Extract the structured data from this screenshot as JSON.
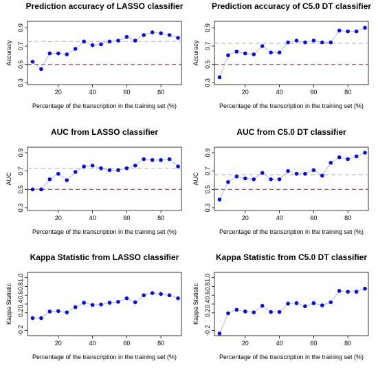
{
  "chart_data": [
    {
      "type": "line",
      "title": "Prediction accuracy of LASSO classifier",
      "xlabel": "Percentage of the transcription in the training set (%)",
      "ylabel": "Accuracy",
      "xlim": [
        2,
        92
      ],
      "ylim": [
        0.28,
        0.97
      ],
      "xticks": [
        20,
        40,
        60,
        80
      ],
      "yticks": [
        0.3,
        0.5,
        0.7,
        0.9
      ],
      "ref_lines": [
        {
          "y": 0.75,
          "style": "dashed",
          "color": "#bdbdbd"
        },
        {
          "y": 0.5,
          "style": "dashed",
          "color": "#e8281e"
        }
      ],
      "series": [
        {
          "x": [
            5,
            10,
            15,
            20,
            25,
            30,
            35,
            40,
            45,
            50,
            55,
            60,
            65,
            70,
            75,
            80,
            85,
            90
          ],
          "y": [
            0.53,
            0.45,
            0.62,
            0.62,
            0.61,
            0.67,
            0.75,
            0.71,
            0.72,
            0.75,
            0.76,
            0.8,
            0.76,
            0.82,
            0.85,
            0.84,
            0.82,
            0.79
          ]
        }
      ]
    },
    {
      "type": "line",
      "title": "Prediction accuracy of C5.0 DT classifier",
      "xlabel": "Percentage of the transcription in the training set (%)",
      "ylabel": "Accuracy",
      "xlim": [
        2,
        92
      ],
      "ylim": [
        0.28,
        0.97
      ],
      "xticks": [
        20,
        40,
        60,
        80
      ],
      "yticks": [
        0.3,
        0.5,
        0.7,
        0.9
      ],
      "ref_lines": [
        {
          "y": 0.73,
          "style": "dashed",
          "color": "#bdbdbd"
        },
        {
          "y": 0.5,
          "style": "dashed",
          "color": "#e8281e"
        }
      ],
      "series": [
        {
          "x": [
            5,
            10,
            15,
            20,
            25,
            30,
            35,
            40,
            45,
            50,
            55,
            60,
            65,
            70,
            75,
            80,
            85,
            90
          ],
          "y": [
            0.36,
            0.6,
            0.64,
            0.62,
            0.61,
            0.7,
            0.63,
            0.63,
            0.74,
            0.76,
            0.74,
            0.76,
            0.74,
            0.74,
            0.87,
            0.86,
            0.86,
            0.9
          ]
        }
      ]
    },
    {
      "type": "line",
      "title": "AUC from LASSO classifier",
      "xlabel": "Percentage of the transcription in the training set (%)",
      "ylabel": "AUC",
      "xlim": [
        2,
        92
      ],
      "ylim": [
        0.27,
        0.96
      ],
      "xticks": [
        20,
        40,
        60,
        80
      ],
      "yticks": [
        0.3,
        0.5,
        0.7,
        0.9
      ],
      "ref_lines": [
        {
          "y": 0.73,
          "style": "dashed",
          "color": "#bdbdbd"
        },
        {
          "y": 0.5,
          "style": "dashed",
          "color": "#e8281e"
        }
      ],
      "series": [
        {
          "x": [
            5,
            10,
            15,
            20,
            25,
            30,
            35,
            40,
            45,
            50,
            55,
            60,
            65,
            70,
            75,
            80,
            85,
            90
          ],
          "y": [
            0.5,
            0.5,
            0.61,
            0.67,
            0.6,
            0.69,
            0.75,
            0.76,
            0.73,
            0.71,
            0.71,
            0.73,
            0.76,
            0.83,
            0.82,
            0.82,
            0.83,
            0.75
          ]
        }
      ]
    },
    {
      "type": "line",
      "title": "AUC from C5.0 DT classifier",
      "xlabel": "Percentage of the transcription in the training set (%)",
      "ylabel": "AUC",
      "xlim": [
        2,
        92
      ],
      "ylim": [
        0.27,
        0.96
      ],
      "xticks": [
        20,
        40,
        60,
        80
      ],
      "yticks": [
        0.3,
        0.5,
        0.7,
        0.9
      ],
      "ref_lines": [
        {
          "y": 0.66,
          "style": "dashed",
          "color": "#bdbdbd"
        },
        {
          "y": 0.5,
          "style": "dashed",
          "color": "#e8281e"
        }
      ],
      "series": [
        {
          "x": [
            5,
            10,
            15,
            20,
            25,
            30,
            35,
            40,
            45,
            50,
            55,
            60,
            65,
            70,
            75,
            80,
            85,
            90
          ],
          "y": [
            0.39,
            0.58,
            0.64,
            0.62,
            0.61,
            0.68,
            0.61,
            0.61,
            0.7,
            0.67,
            0.67,
            0.71,
            0.65,
            0.79,
            0.85,
            0.83,
            0.86,
            0.9
          ]
        }
      ]
    },
    {
      "type": "line",
      "title": "Kappa Statistic from LASSO classifier",
      "xlabel": "Percentage of the transcription in the training set (%)",
      "ylabel": "Kappa Statistic",
      "xlim": [
        2,
        92
      ],
      "ylim": [
        -0.32,
        1.12
      ],
      "xticks": [
        20,
        40,
        60,
        80
      ],
      "yticks": [
        -0.2,
        0.2,
        0.4,
        0.6,
        0.8,
        1.0
      ],
      "ytick_labels": [
        "-0.2",
        "0.2",
        "0.4",
        "0.6",
        "0.8",
        "1.0"
      ],
      "series": [
        {
          "x": [
            5,
            10,
            15,
            20,
            25,
            30,
            35,
            40,
            45,
            50,
            55,
            60,
            65,
            70,
            75,
            80,
            85,
            90
          ],
          "y": [
            0.08,
            0.08,
            0.23,
            0.24,
            0.21,
            0.33,
            0.43,
            0.38,
            0.39,
            0.43,
            0.45,
            0.53,
            0.44,
            0.6,
            0.65,
            0.63,
            0.6,
            0.53
          ]
        }
      ]
    },
    {
      "type": "line",
      "title": "Kappa Statistic from C5.0 DT classifier",
      "xlabel": "Percentage of the transcription in the training set (%)",
      "ylabel": "Kappa Statistic",
      "xlim": [
        2,
        92
      ],
      "ylim": [
        -0.32,
        1.12
      ],
      "xticks": [
        20,
        40,
        60,
        80
      ],
      "yticks": [
        -0.2,
        0.2,
        0.4,
        0.6,
        0.8,
        1.0
      ],
      "ytick_labels": [
        "-0.2",
        "0.2",
        "0.4",
        "0.6",
        "0.8",
        "1.0"
      ],
      "series": [
        {
          "x": [
            5,
            10,
            15,
            20,
            25,
            30,
            35,
            40,
            45,
            50,
            55,
            60,
            65,
            70,
            75,
            80,
            85,
            90
          ],
          "y": [
            -0.27,
            0.19,
            0.27,
            0.23,
            0.21,
            0.36,
            0.22,
            0.22,
            0.41,
            0.42,
            0.35,
            0.42,
            0.37,
            0.44,
            0.7,
            0.68,
            0.68,
            0.75
          ]
        }
      ]
    }
  ],
  "colors": {
    "points": "#0a0ae6",
    "connector": "#a9bde6",
    "ref_gray": "#bdbdbd",
    "ref_red": "#e8281e",
    "axis": "#000000"
  }
}
